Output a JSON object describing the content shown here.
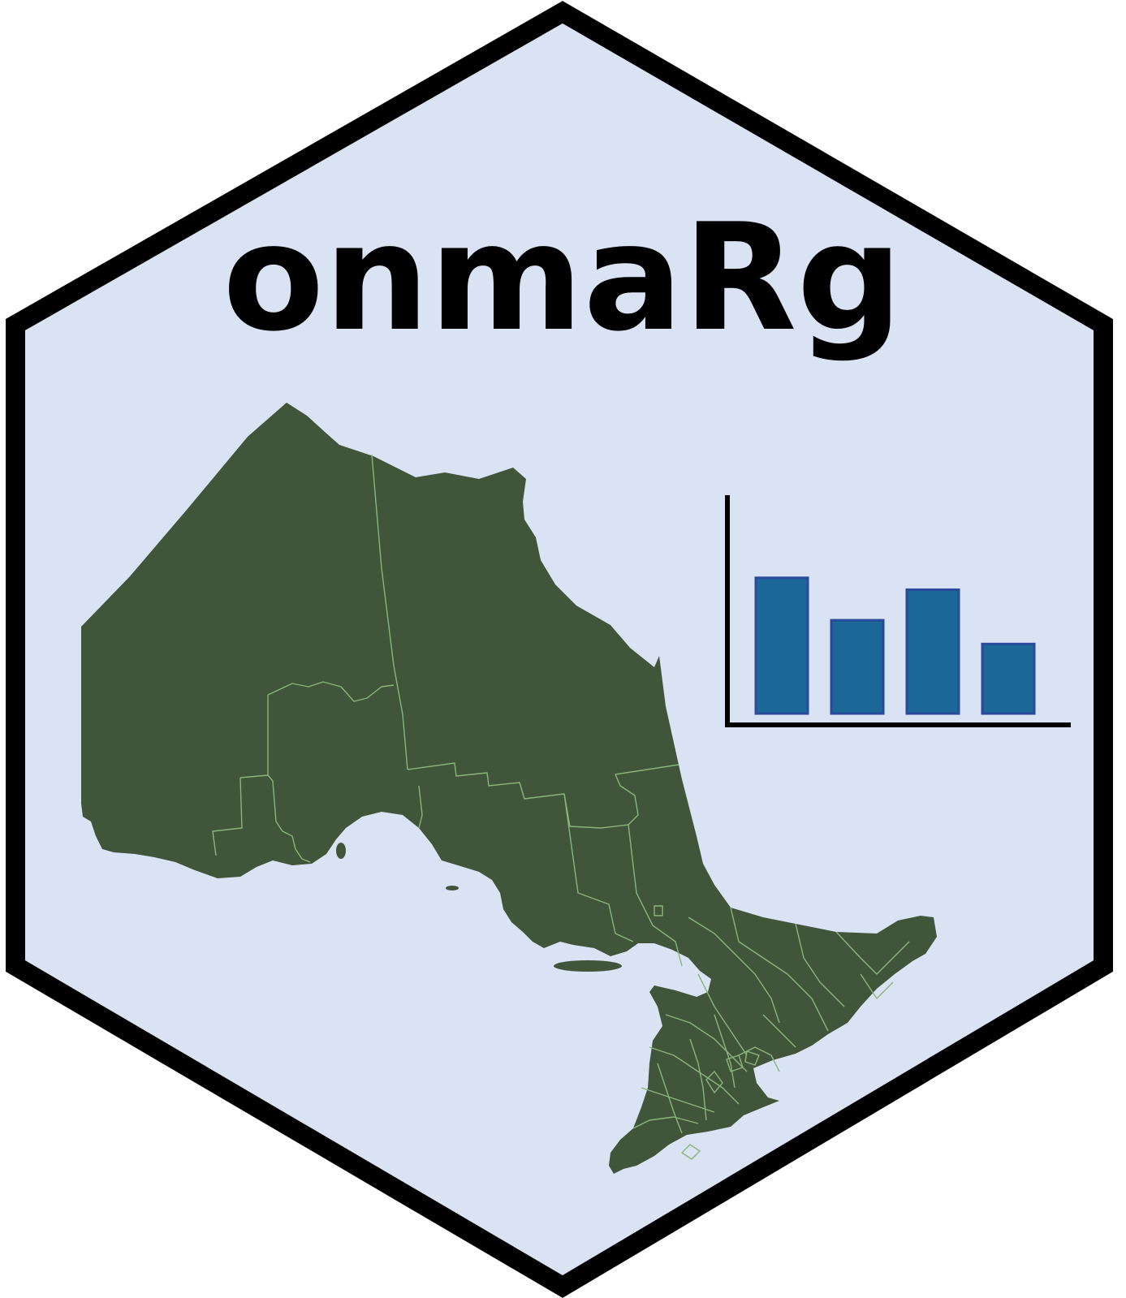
{
  "logo": {
    "title": "onmaRg"
  },
  "colors": {
    "hex_fill": "#dae3f4",
    "hex_border": "#000000",
    "map_fill": "#41553a",
    "map_boundary": "#8ab57a",
    "bar_fill": "#1b6798",
    "bar_stroke": "#2a4a9a",
    "axis": "#000000"
  },
  "icons": {
    "map": "ontario-map-icon",
    "chart": "bar-chart-icon"
  },
  "bar_chart": {
    "type": "bar",
    "values": [
      0.8,
      0.55,
      0.73,
      0.41
    ],
    "ylim": [
      0,
      1
    ]
  }
}
